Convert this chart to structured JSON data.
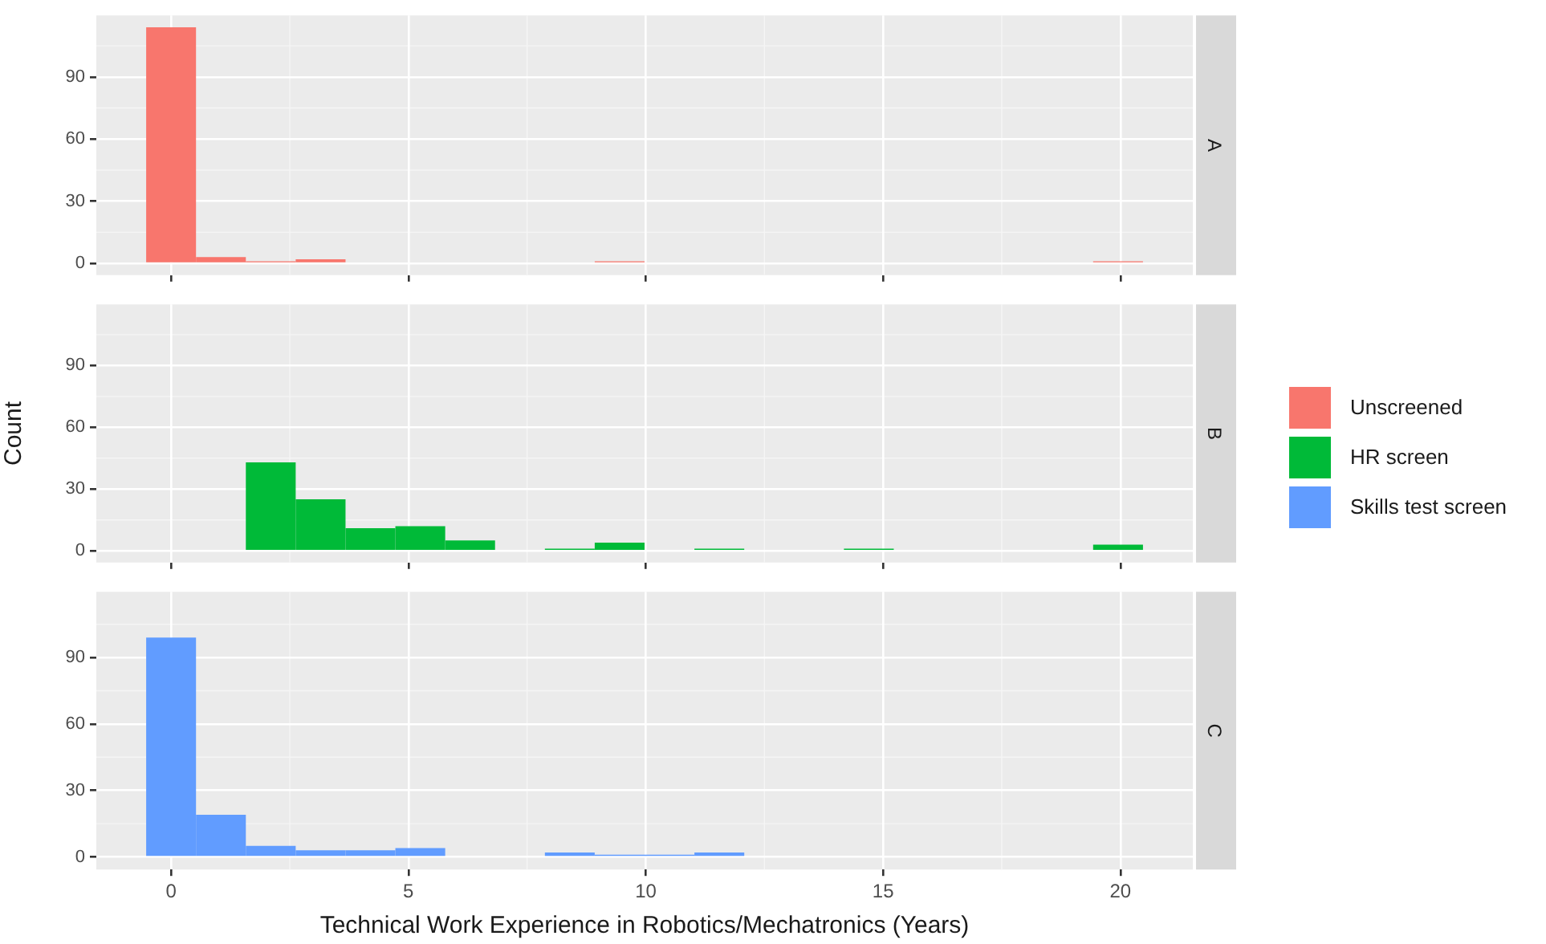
{
  "chart_data": [
    {
      "type": "histogram",
      "annotations": [
        "A"
      ],
      "bins": [
        -0.525,
        0.525,
        1.575,
        2.625,
        3.675,
        4.725,
        5.775,
        6.825,
        7.875,
        8.925,
        9.975,
        11.025,
        12.075,
        13.125,
        14.175,
        15.225,
        16.275,
        17.325,
        18.375,
        19.425,
        20.475
      ],
      "series": [
        {
          "name": "Unscreened",
          "color": "#f8766d",
          "values": [
            114,
            3,
            1,
            2,
            0,
            0,
            0,
            0,
            0,
            1,
            0,
            0,
            0,
            0,
            0,
            0,
            0,
            0,
            0,
            1
          ]
        }
      ],
      "xlim": [
        -1.575,
        21.525
      ],
      "xticks": [
        0,
        5,
        10,
        15,
        20
      ],
      "ylim": [
        -5.7,
        119.7
      ],
      "yticks": [
        0,
        30,
        60,
        90
      ],
      "grid": true,
      "tick_labels": "y"
    },
    {
      "type": "histogram",
      "annotations": [
        "B"
      ],
      "ylabel": "Count",
      "bins": [
        -0.525,
        0.525,
        1.575,
        2.625,
        3.675,
        4.725,
        5.775,
        6.825,
        7.875,
        8.925,
        9.975,
        11.025,
        12.075,
        13.125,
        14.175,
        15.225,
        16.275,
        17.325,
        18.375,
        19.425,
        20.475
      ],
      "series": [
        {
          "name": "HR screen",
          "color": "#00ba38",
          "values": [
            0,
            0,
            43,
            25,
            11,
            12,
            5,
            0,
            1,
            4,
            0,
            1,
            0,
            0,
            1,
            0,
            0,
            0,
            0,
            3
          ]
        }
      ],
      "xlim": [
        -1.575,
        21.525
      ],
      "xticks": [
        0,
        5,
        10,
        15,
        20
      ],
      "ylim": [
        -5.7,
        119.7
      ],
      "yticks": [
        0,
        30,
        60,
        90
      ],
      "grid": true,
      "tick_labels": "y",
      "legend": "right"
    },
    {
      "type": "histogram",
      "annotations": [
        "C"
      ],
      "xlabel": "Technical Work Experience in Robotics/Mechatronics (Years)",
      "bins": [
        -0.525,
        0.525,
        1.575,
        2.625,
        3.675,
        4.725,
        5.775,
        6.825,
        7.875,
        8.925,
        9.975,
        11.025,
        12.075,
        13.125,
        14.175,
        15.225,
        16.275,
        17.325,
        18.375,
        19.425,
        20.475
      ],
      "series": [
        {
          "name": "Skills test screen",
          "color": "#619cff",
          "values": [
            99,
            19,
            5,
            3,
            3,
            4,
            0,
            0,
            2,
            1,
            1,
            2,
            0,
            0,
            0,
            0,
            0,
            0,
            0,
            0
          ]
        }
      ],
      "xlim": [
        -1.575,
        21.525
      ],
      "xticks": [
        0,
        5,
        10,
        15,
        20
      ],
      "ylim": [
        -5.7,
        119.7
      ],
      "yticks": [
        0,
        30,
        60,
        90
      ],
      "grid": true
    }
  ]
}
